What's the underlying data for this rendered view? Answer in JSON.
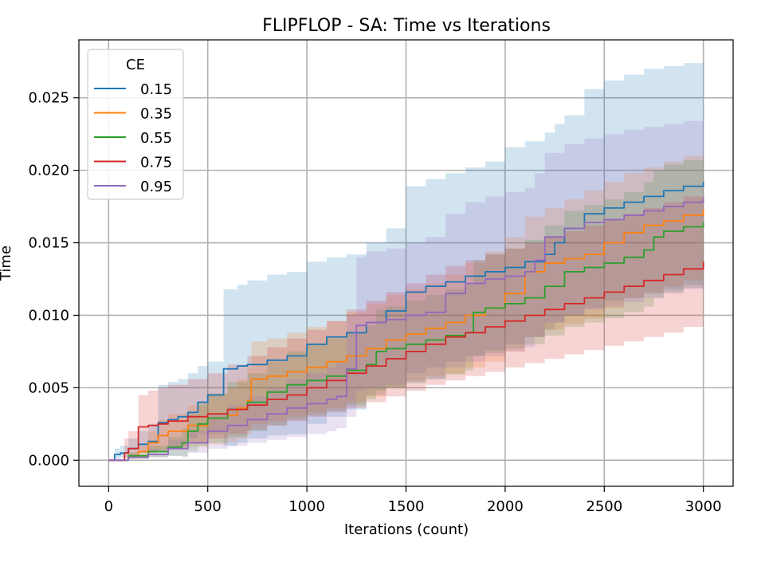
{
  "chart_data": {
    "type": "line",
    "title": "FLIPFLOP - SA: Time vs Iterations",
    "xlabel": "Iterations (count)",
    "ylabel": "Time",
    "xlim": [
      -150,
      3150
    ],
    "ylim": [
      -0.0018,
      0.029
    ],
    "xticks": [
      0,
      500,
      1000,
      1500,
      2000,
      2500,
      3000
    ],
    "xtick_labels": [
      "0",
      "500",
      "1000",
      "1500",
      "2000",
      "2500",
      "3000"
    ],
    "yticks": [
      0.0,
      0.005,
      0.01,
      0.015,
      0.02,
      0.025
    ],
    "ytick_labels": [
      "0.000",
      "0.005",
      "0.010",
      "0.015",
      "0.020",
      "0.025"
    ],
    "grid": true,
    "legend_title": "CE",
    "legend_position": "top-left",
    "series": [
      {
        "name": "0.15",
        "color": "#1f77b4",
        "x": [
          0,
          30,
          60,
          100,
          150,
          200,
          250,
          300,
          350,
          400,
          450,
          500,
          580,
          650,
          700,
          800,
          900,
          1000,
          1100,
          1200,
          1300,
          1400,
          1500,
          1600,
          1700,
          1800,
          1900,
          2000,
          2100,
          2200,
          2250,
          2300,
          2400,
          2500,
          2600,
          2700,
          2800,
          2900,
          3000
        ],
        "y": [
          0,
          0.0004,
          0.0005,
          0.0008,
          0.0011,
          0.0013,
          0.0026,
          0.0028,
          0.003,
          0.0033,
          0.004,
          0.0045,
          0.0063,
          0.0065,
          0.0066,
          0.0069,
          0.0072,
          0.008,
          0.0085,
          0.0088,
          0.0095,
          0.0103,
          0.0116,
          0.012,
          0.0123,
          0.0127,
          0.013,
          0.0133,
          0.0137,
          0.0142,
          0.015,
          0.016,
          0.017,
          0.0174,
          0.0178,
          0.0182,
          0.0186,
          0.0189,
          0.0192
        ],
        "lower": [
          0,
          0.0001,
          0.0002,
          0.0003,
          0.0005,
          0.0006,
          0.0007,
          0.0008,
          0.001,
          0.0015,
          0.0018,
          0.0018,
          0.001,
          0.0012,
          0.0015,
          0.0017,
          0.0018,
          0.0025,
          0.003,
          0.0035,
          0.0045,
          0.005,
          0.006,
          0.0064,
          0.0068,
          0.0072,
          0.0076,
          0.008,
          0.0085,
          0.009,
          0.0095,
          0.01,
          0.0105,
          0.011,
          0.0112,
          0.0115,
          0.0118,
          0.0121,
          0.0124
        ],
        "upper": [
          0,
          0.0008,
          0.001,
          0.0015,
          0.002,
          0.0025,
          0.0052,
          0.0054,
          0.0056,
          0.006,
          0.0065,
          0.0068,
          0.0118,
          0.0121,
          0.0124,
          0.0128,
          0.013,
          0.0137,
          0.014,
          0.0142,
          0.015,
          0.016,
          0.0189,
          0.0194,
          0.0198,
          0.0202,
          0.0206,
          0.0216,
          0.022,
          0.0226,
          0.0232,
          0.0238,
          0.0256,
          0.0262,
          0.0266,
          0.027,
          0.0272,
          0.0274,
          0.0275
        ]
      },
      {
        "name": "0.35",
        "color": "#ff7f0e",
        "x": [
          0,
          100,
          150,
          200,
          250,
          300,
          400,
          500,
          600,
          650,
          700,
          720,
          800,
          900,
          1000,
          1100,
          1200,
          1300,
          1400,
          1500,
          1600,
          1700,
          1800,
          1900,
          2000,
          2100,
          2200,
          2300,
          2400,
          2500,
          2600,
          2700,
          2800,
          2900,
          3000
        ],
        "y": [
          0,
          0.0003,
          0.0006,
          0.0012,
          0.0017,
          0.002,
          0.0024,
          0.0029,
          0.0031,
          0.0036,
          0.0041,
          0.0056,
          0.0058,
          0.0061,
          0.0064,
          0.0068,
          0.0072,
          0.0077,
          0.0083,
          0.0087,
          0.0091,
          0.0095,
          0.01,
          0.0105,
          0.0115,
          0.013,
          0.0136,
          0.0139,
          0.0142,
          0.015,
          0.0157,
          0.0162,
          0.0165,
          0.0169,
          0.0173
        ],
        "lower": [
          0,
          0.0001,
          0.0002,
          0.0004,
          0.0006,
          0.0008,
          0.0009,
          0.0011,
          0.0013,
          0.0015,
          0.0018,
          0.0025,
          0.0027,
          0.003,
          0.0033,
          0.0036,
          0.004,
          0.0044,
          0.005,
          0.0055,
          0.0058,
          0.006,
          0.0064,
          0.0068,
          0.0075,
          0.0085,
          0.009,
          0.0094,
          0.0098,
          0.0105,
          0.0112,
          0.0116,
          0.012,
          0.0124,
          0.0128
        ],
        "upper": [
          0,
          0.0006,
          0.001,
          0.002,
          0.0028,
          0.0032,
          0.0038,
          0.0046,
          0.005,
          0.0056,
          0.0064,
          0.0082,
          0.0084,
          0.0088,
          0.0092,
          0.0096,
          0.0102,
          0.0108,
          0.0114,
          0.0118,
          0.0122,
          0.0128,
          0.0136,
          0.0144,
          0.0154,
          0.0168,
          0.0174,
          0.018,
          0.0186,
          0.0192,
          0.0198,
          0.0202,
          0.0206,
          0.021,
          0.0214
        ]
      },
      {
        "name": "0.55",
        "color": "#2ca02c",
        "x": [
          0,
          100,
          200,
          300,
          370,
          400,
          450,
          500,
          600,
          700,
          800,
          900,
          1000,
          1100,
          1200,
          1300,
          1350,
          1400,
          1500,
          1600,
          1700,
          1800,
          1840,
          1900,
          2000,
          2100,
          2200,
          2300,
          2400,
          2500,
          2600,
          2700,
          2750,
          2800,
          2900,
          3000
        ],
        "y": [
          0,
          0.0003,
          0.0006,
          0.0009,
          0.0012,
          0.002,
          0.0025,
          0.0029,
          0.0035,
          0.004,
          0.0047,
          0.0052,
          0.0055,
          0.0058,
          0.0062,
          0.0066,
          0.0075,
          0.0077,
          0.008,
          0.0083,
          0.0086,
          0.0088,
          0.0102,
          0.0105,
          0.0108,
          0.0112,
          0.012,
          0.013,
          0.0133,
          0.0136,
          0.014,
          0.0145,
          0.0154,
          0.0158,
          0.0161,
          0.0164
        ],
        "lower": [
          0,
          0.0001,
          0.0002,
          0.0003,
          0.0002,
          0.0006,
          0.001,
          0.0012,
          0.0016,
          0.002,
          0.0024,
          0.0028,
          0.0031,
          0.0034,
          0.0038,
          0.0042,
          0.0048,
          0.005,
          0.0053,
          0.0056,
          0.0059,
          0.0062,
          0.0072,
          0.0074,
          0.0077,
          0.008,
          0.0086,
          0.0092,
          0.0095,
          0.0098,
          0.0102,
          0.0106,
          0.0112,
          0.0116,
          0.0119,
          0.0122
        ],
        "upper": [
          0,
          0.0005,
          0.001,
          0.0016,
          0.0022,
          0.0032,
          0.004,
          0.0046,
          0.0054,
          0.006,
          0.0068,
          0.0075,
          0.008,
          0.0084,
          0.0088,
          0.0093,
          0.0104,
          0.0106,
          0.011,
          0.0114,
          0.0118,
          0.0122,
          0.0138,
          0.0142,
          0.0146,
          0.0152,
          0.0162,
          0.0172,
          0.0176,
          0.018,
          0.0185,
          0.0192,
          0.02,
          0.0204,
          0.0207,
          0.021
        ]
      },
      {
        "name": "0.75",
        "color": "#d62728",
        "x": [
          0,
          80,
          100,
          150,
          200,
          250,
          300,
          400,
          500,
          600,
          700,
          800,
          900,
          1000,
          1100,
          1200,
          1300,
          1400,
          1500,
          1600,
          1700,
          1800,
          1900,
          2000,
          2100,
          2200,
          2300,
          2400,
          2500,
          2600,
          2700,
          2800,
          2900,
          3000
        ],
        "y": [
          0,
          0.0005,
          0.0008,
          0.0023,
          0.0024,
          0.0025,
          0.0027,
          0.003,
          0.0032,
          0.0035,
          0.0038,
          0.0042,
          0.0045,
          0.005,
          0.0055,
          0.006,
          0.0065,
          0.007,
          0.0075,
          0.008,
          0.0085,
          0.0088,
          0.0092,
          0.0096,
          0.01,
          0.0104,
          0.0108,
          0.0112,
          0.0116,
          0.012,
          0.0124,
          0.0128,
          0.0132,
          0.0137
        ],
        "lower": [
          0,
          0.0001,
          0.0002,
          0.0005,
          0.0006,
          0.0007,
          0.0009,
          0.0012,
          0.0015,
          0.0018,
          0.0021,
          0.0024,
          0.0027,
          0.003,
          0.0033,
          0.0036,
          0.004,
          0.0044,
          0.0048,
          0.0052,
          0.0055,
          0.0058,
          0.0061,
          0.0064,
          0.0067,
          0.007,
          0.0073,
          0.0076,
          0.0079,
          0.0082,
          0.0085,
          0.0088,
          0.0092,
          0.0095
        ],
        "upper": [
          0,
          0.0015,
          0.002,
          0.0045,
          0.0048,
          0.005,
          0.0052,
          0.0056,
          0.006,
          0.0066,
          0.0072,
          0.0078,
          0.0084,
          0.009,
          0.0096,
          0.0104,
          0.011,
          0.0116,
          0.0122,
          0.0128,
          0.0134,
          0.0138,
          0.0142,
          0.0146,
          0.015,
          0.0154,
          0.0158,
          0.0162,
          0.0166,
          0.017,
          0.0174,
          0.0178,
          0.0182,
          0.0186
        ]
      },
      {
        "name": "0.95",
        "color": "#9467bd",
        "x": [
          0,
          100,
          200,
          300,
          400,
          500,
          600,
          700,
          800,
          900,
          1000,
          1100,
          1150,
          1200,
          1250,
          1300,
          1400,
          1500,
          1600,
          1700,
          1800,
          1900,
          2000,
          2100,
          2150,
          2200,
          2300,
          2400,
          2500,
          2600,
          2700,
          2800,
          2900,
          3000
        ],
        "y": [
          0,
          0.0002,
          0.0004,
          0.0008,
          0.0012,
          0.002,
          0.0024,
          0.0028,
          0.0032,
          0.0036,
          0.0039,
          0.0042,
          0.0044,
          0.0063,
          0.0093,
          0.0095,
          0.0097,
          0.01,
          0.0102,
          0.0115,
          0.0122,
          0.0125,
          0.0127,
          0.013,
          0.0138,
          0.0154,
          0.016,
          0.0164,
          0.0166,
          0.0169,
          0.0172,
          0.0175,
          0.0178,
          0.0181
        ],
        "lower": [
          0,
          0.0001,
          0.0002,
          0.0003,
          0.0005,
          0.0008,
          0.001,
          0.0012,
          0.0014,
          0.0016,
          0.0018,
          0.002,
          0.0022,
          0.003,
          0.0048,
          0.005,
          0.0052,
          0.0054,
          0.0056,
          0.0064,
          0.0068,
          0.0072,
          0.0075,
          0.0078,
          0.0085,
          0.0095,
          0.01,
          0.0104,
          0.0106,
          0.0109,
          0.0112,
          0.0115,
          0.0118,
          0.0121
        ],
        "upper": [
          0,
          0.0004,
          0.0008,
          0.0014,
          0.002,
          0.0032,
          0.0038,
          0.0044,
          0.005,
          0.0056,
          0.006,
          0.0064,
          0.0068,
          0.01,
          0.014,
          0.0144,
          0.0146,
          0.015,
          0.0154,
          0.017,
          0.0178,
          0.0182,
          0.0185,
          0.0188,
          0.0198,
          0.0212,
          0.0218,
          0.0222,
          0.0225,
          0.0228,
          0.023,
          0.0232,
          0.0234,
          0.0236
        ]
      }
    ]
  }
}
